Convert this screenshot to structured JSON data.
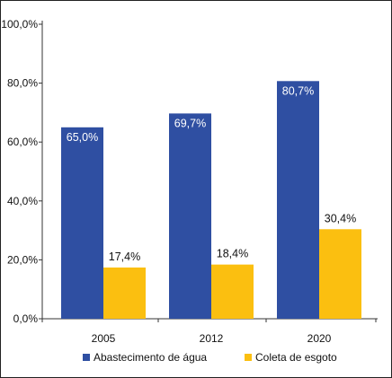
{
  "chart_data": {
    "type": "bar",
    "categories": [
      "2005",
      "2012",
      "2020"
    ],
    "series": [
      {
        "name": "Abastecimento de água",
        "values": [
          65.0,
          69.7,
          80.7
        ],
        "labels": [
          "65,0%",
          "69,7%",
          "80,7%"
        ],
        "color": "#2F4FA2"
      },
      {
        "name": "Coleta de esgoto",
        "values": [
          17.4,
          18.4,
          30.4
        ],
        "labels": [
          "17,4%",
          "18,4%",
          "30,4%"
        ],
        "color": "#FBBF10"
      }
    ],
    "yticks": [
      0,
      20,
      40,
      60,
      80,
      100
    ],
    "ytick_labels": [
      "0,0%",
      "20,0%",
      "40,0%",
      "60,0%",
      "80,0%",
      "100,0%"
    ],
    "ylim": [
      0,
      100
    ],
    "grid": false,
    "legend": "bottom",
    "title": "",
    "xlabel": "",
    "ylabel": ""
  }
}
